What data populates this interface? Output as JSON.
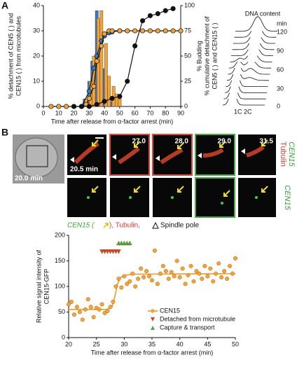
{
  "panel_labels": [
    "A",
    "B"
  ],
  "chart_data": [
    {
      "type": "combo",
      "xlabel": "Time after release from α-factor arrest (min)",
      "ylabel": [
        "% detachment of CEN5 ( ) and",
        "CEN15 ( ) from microtubules"
      ],
      "y2label": [
        "% Budding",
        "% cumulative detachment of",
        "CEN5 ( ) and CEN15 ( )"
      ],
      "xlim": [
        0,
        90
      ],
      "xticks": [
        0,
        10,
        20,
        30,
        40,
        50,
        60,
        70,
        80,
        90
      ],
      "ylim": [
        0,
        40
      ],
      "yticks": [
        0,
        10,
        20,
        30,
        40
      ],
      "y2lim": [
        0,
        100
      ],
      "y2ticks": [
        0,
        25,
        50,
        75,
        100
      ],
      "series": [
        {
          "kind": "bar",
          "color": "#3a78c2",
          "x": [
            27,
            30,
            32,
            35,
            37,
            40,
            42,
            45
          ],
          "values": [
            3,
            10,
            18,
            38,
            30,
            15,
            5,
            2
          ]
        },
        {
          "kind": "bar",
          "color": "#f2a33a",
          "x": [
            28,
            31,
            33,
            36,
            38,
            41,
            43,
            46,
            48,
            50
          ],
          "values": [
            3,
            10,
            20,
            35,
            38,
            25,
            12,
            8,
            5,
            3
          ]
        },
        {
          "kind": "line",
          "axis": "y2",
          "color": "#3a78c2",
          "x": [
            25,
            30,
            33,
            35,
            38,
            40,
            43,
            45,
            50
          ],
          "values": [
            0,
            15,
            38,
            50,
            65,
            70,
            73,
            74,
            75
          ]
        },
        {
          "kind": "line",
          "axis": "y2",
          "color": "#f2a33a",
          "x": [
            5,
            10,
            15,
            20,
            25,
            28,
            30,
            33,
            35,
            38,
            40,
            43,
            45,
            50,
            55,
            60,
            65,
            70,
            75,
            80,
            85,
            90
          ],
          "values": [
            0,
            0,
            0,
            0,
            0,
            2,
            8,
            20,
            45,
            60,
            72,
            75,
            75,
            75,
            75,
            75,
            75,
            75,
            75,
            75,
            75,
            75
          ]
        },
        {
          "kind": "line",
          "axis": "y2",
          "color": "#111111",
          "x": [
            20,
            25,
            30,
            35,
            40,
            45,
            50,
            55,
            60,
            65,
            70,
            75,
            80,
            85
          ],
          "values": [
            0,
            0,
            0,
            2,
            5,
            8,
            10,
            25,
            60,
            85,
            90,
            92,
            95,
            97
          ]
        }
      ]
    },
    {
      "type": "scatter",
      "xlabel": "Time after release from α-factor arrest (min)",
      "ylabel": [
        "Relative signal intensity of",
        "CEN15-GFP"
      ],
      "xlim": [
        20,
        50
      ],
      "xticks": [
        20,
        25,
        30,
        35,
        40,
        45,
        50
      ],
      "ylim": [
        0,
        200
      ],
      "yticks": [
        0,
        50,
        100,
        150,
        200
      ],
      "legend": "lower right",
      "series": [
        {
          "name": "CEN15",
          "marker": "circle",
          "color": "#f2a33a",
          "x": [
            20,
            20.5,
            21,
            21.5,
            22,
            22.5,
            23,
            23.5,
            24,
            24.5,
            25,
            25.5,
            26,
            26.5,
            27,
            27.5,
            28,
            28.5,
            29,
            29.5,
            30,
            30.5,
            31,
            31.5,
            32,
            32.5,
            33,
            33.5,
            34,
            34.5,
            35,
            35.5,
            36,
            36.5,
            37,
            37.5,
            38,
            38.5,
            39,
            39.5,
            40,
            40.5,
            41,
            41.5,
            42,
            42.5,
            43,
            43.5,
            44,
            44.5,
            45,
            45.5,
            46,
            46.5,
            47,
            47.5,
            48,
            48.5,
            49,
            49.5,
            50
          ],
          "values": [
            65,
            70,
            45,
            60,
            50,
            35,
            55,
            75,
            60,
            40,
            58,
            55,
            65,
            48,
            52,
            60,
            70,
            100,
            115,
            98,
            120,
            105,
            110,
            125,
            100,
            115,
            135,
            118,
            130,
            120,
            112,
            170,
            105,
            125,
            140,
            130,
            115,
            128,
            120,
            150,
            118,
            135,
            105,
            122,
            140,
            110,
            130,
            125,
            115,
            140,
            120,
            135,
            110,
            125,
            145,
            118,
            130,
            115,
            140,
            125,
            155
          ],
          "fit": {
            "x": [
              20,
              27,
              27.8,
              28.3,
              28.8,
              29.3,
              30,
              32,
              50
            ],
            "values": [
              55,
              55,
              60,
              80,
              105,
              117,
              122,
              124,
              125
            ]
          }
        },
        {
          "name": "Detached from microtubule",
          "marker": "triangle-down",
          "color": "#d9412b",
          "x": [
            26,
            26.5,
            27,
            27.5,
            28,
            28.5,
            29
          ],
          "values": [
            168,
            168,
            168,
            168,
            168,
            168,
            168
          ]
        },
        {
          "name": "Capture & transport",
          "marker": "triangle-up",
          "color": "#4aa84a",
          "x": [
            29,
            29.5,
            30,
            30.5,
            31
          ],
          "values": [
            185,
            185,
            185,
            185,
            185
          ]
        }
      ]
    }
  ],
  "dna_content": {
    "title": "DNA content",
    "unit": "min",
    "ticks": [
      "120",
      "90",
      "60",
      "30",
      "0"
    ],
    "peaks": [
      "1C",
      "2C"
    ]
  },
  "micrographs": {
    "times": [
      "20.0 min",
      "20.5 min",
      "27.0",
      "28.0",
      "29.0",
      "31.5"
    ],
    "channels": [
      "Tubulin",
      "CEN15",
      "CEN15"
    ],
    "legend": [
      "CEN15 (",
      "), Tubulin, ",
      "Spindle pole"
    ]
  }
}
